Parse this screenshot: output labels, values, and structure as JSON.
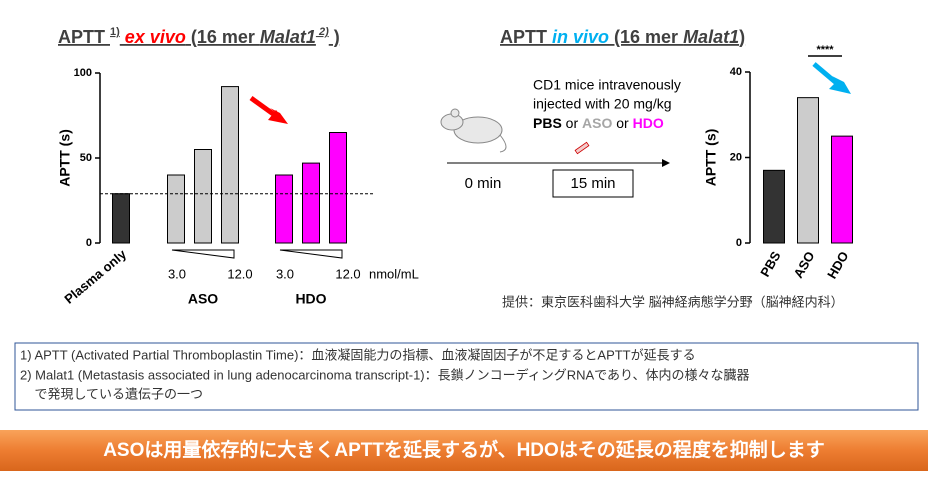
{
  "chart_data": [
    {
      "type": "bar",
      "title_parts": [
        {
          "text": "APTT "
        },
        {
          "text": "1)",
          "sup": true
        },
        {
          "text": " ex vivo",
          "italic": true,
          "color": "#ff0000"
        },
        {
          "text": " (16 mer "
        },
        {
          "text": "Malat1",
          "italic": true
        },
        {
          "text": " 2)",
          "sup": true,
          "italic": true
        },
        {
          "text": " )"
        }
      ],
      "y_label": "APTT (s)",
      "categories": [
        "Plasma only",
        null,
        null,
        null,
        null,
        null,
        null
      ],
      "values": [
        29,
        40,
        55,
        92,
        40,
        47,
        65
      ],
      "colors": [
        "#333333",
        "#cccccc",
        "#cccccc",
        "#cccccc",
        "#ff00ff",
        "#ff00ff",
        "#ff00ff"
      ],
      "hline": 29,
      "groups": [
        {
          "label": "ASO",
          "ticks": [
            "3.0",
            "12.0"
          ]
        },
        {
          "label": "HDO",
          "ticks": [
            "3.0",
            "12.0"
          ]
        }
      ],
      "x_unit": "nmol/mL",
      "ylim": [
        0,
        100
      ],
      "yticks": [
        0,
        50,
        100
      ]
    },
    {
      "type": "bar",
      "title_parts": [
        {
          "text": "APTT "
        },
        {
          "text": "in vivo",
          "italic": true,
          "color": "#00b0f0"
        },
        {
          "text": " (16 mer "
        },
        {
          "text": "Malat1",
          "italic": true
        },
        {
          "text": ")"
        }
      ],
      "y_label": "APTT (s)",
      "categories": [
        "PBS",
        "ASO",
        "HDO"
      ],
      "values": [
        17,
        34,
        25
      ],
      "colors": [
        "#333333",
        "#cccccc",
        "#ff00ff"
      ],
      "significance": "****",
      "ylim": [
        0,
        40
      ],
      "yticks": [
        0,
        20,
        40
      ]
    }
  ],
  "protocol": {
    "lines": [
      "CD1 mice intravenously",
      "injected with 20 mg/kg"
    ],
    "treatments": [
      {
        "text": "PBS",
        "color": "#000000"
      },
      {
        "text": " or ",
        "color": "#000000",
        "plain": true
      },
      {
        "text": "ASO",
        "color": "#a6a6a6"
      },
      {
        "text": " or ",
        "color": "#000000",
        "plain": true
      },
      {
        "text": "HDO",
        "color": "#ff00ff"
      }
    ],
    "start": "0 min",
    "end": "15 min"
  },
  "credit": "提供：東京医科歯科大学 脳神経病態学分野（脳神経内科）",
  "footnotes": [
    "1) APTT (Activated Partial Thromboplastin Time)：血液凝固能力の指標、血液凝固因子が不足するとAPTTが延長する",
    "2) Malat1 (Metastasis associated in lung adenocarcinoma transcript-1)：長鎖ノンコーディングRNAであり、体内の様々な臓器",
    "    で発現している遺伝子の一つ"
  ],
  "conclusion": "ASOは用量依存的に大きくAPTTを延長するが、HDOはその延長の程度を抑制します"
}
